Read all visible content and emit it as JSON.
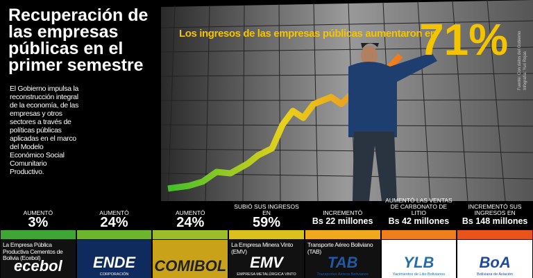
{
  "header": {
    "title": "Recuperación de las empresas públicas en el primer semestre",
    "description": "El Gobierno impulsa la reconstrucción integral de la economía, de las empresas y otros sectores a través de políticas públicas aplicadas en el marco del Modelo Económico Social Comunitario Productivo."
  },
  "headline": {
    "text": "Los ingresos de las empresas públicas aumentaron en",
    "value": "71%"
  },
  "credits": [
    "Fuente: Con datos del Gobierno",
    "Infografía: Yuri Rojas"
  ],
  "stats": [
    {
      "label": "AUMENTÓ",
      "value": "3%",
      "color": "#3fa535",
      "company": "La Empresa Pública Productiva Cementos de Bolivia (Ecebol)",
      "logo": "ecebol"
    },
    {
      "label": "AUMENTÓ",
      "value": "24%",
      "color": "#6cb52d",
      "logo": "ENDE",
      "logo_sub": "CORPORACIÓN"
    },
    {
      "label": "AUMENTÓ",
      "value": "24%",
      "color": "#9cbc2a",
      "logo": "COMIBOL"
    },
    {
      "label": "SUBIÓ SUS INGRESOS EN",
      "value": "59%",
      "color": "#d9c21e",
      "company": "La Empresa Minera Vinto (EMV)",
      "logo": "EMV",
      "logo_sub": "EMPRESA METALÚRGICA VINTO"
    },
    {
      "label": "INCREMENTÓ",
      "value": "Bs 22 millones",
      "color": "#f0a81c",
      "company": "Transporte Aéreo Boliviano (TAB)",
      "logo": "TAB",
      "logo_sub": "Transportes Aéreos Bolivianos"
    },
    {
      "label": "AUMENTÓ LAS VENTAS DE CARBONATO DE LITIO",
      "value": "Bs 42 millones",
      "color": "#ee7f1a",
      "logo": "YLB",
      "logo_sub": "Yacimientos de Litio Bolivianos"
    },
    {
      "label": "INCREMENTÓ SUS INGRESOS EN",
      "value": "Bs 148 millones",
      "color": "#e8541a",
      "logo": "BoA",
      "logo_sub": "Boliviana de Aviación"
    }
  ]
}
